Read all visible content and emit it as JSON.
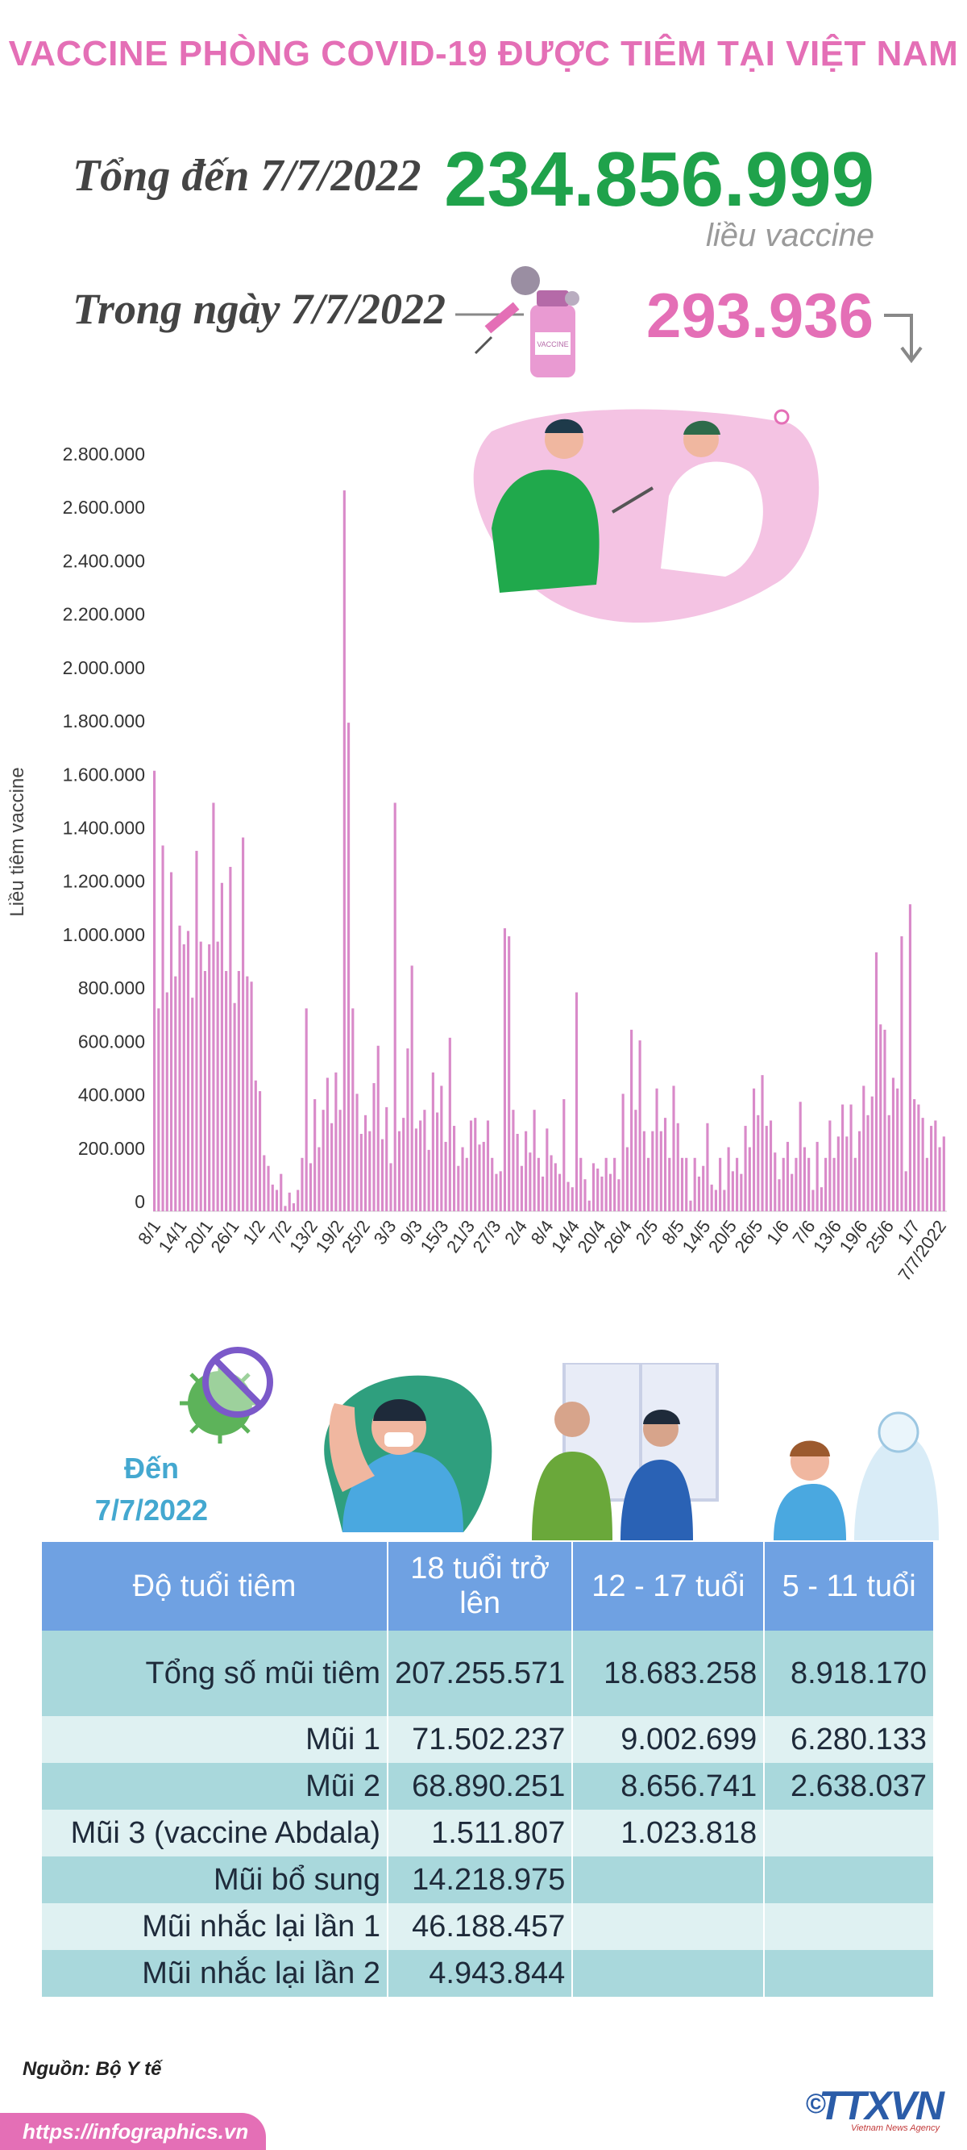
{
  "header": {
    "title": "VACCINE PHÒNG COVID-19 ĐƯỢC TIÊM TẠI VIỆT NAM",
    "total_label": "Tổng đến 7/7/2022",
    "total_value": "234.856.999",
    "total_unit": "liều vaccine",
    "day_label": "Trong ngày 7/7/2022",
    "day_value": "293.936"
  },
  "colors": {
    "pink": "#e46fb6",
    "green": "#1fa24b",
    "bar": "#d98ac9",
    "table_header": "#6fa1e2"
  },
  "icons": [
    "vaccine-vial-icon",
    "syringe-icon",
    "virus-icon",
    "arrow-down-icon",
    "doctor-patient-illustration",
    "no-virus-icon",
    "vaccinated-man-illustration",
    "nurse-vaccinating-illustration",
    "child-vaccination-illustration"
  ],
  "chart_data": {
    "type": "bar",
    "ylabel": "Liều tiêm vaccine",
    "ylim": [
      0,
      2800000
    ],
    "yticks": [
      0,
      200000,
      400000,
      600000,
      800000,
      1000000,
      1200000,
      1400000,
      1600000,
      1800000,
      2000000,
      2200000,
      2400000,
      2600000,
      2800000
    ],
    "ytick_labels": [
      "0",
      "200.000",
      "400.000",
      "600.000",
      "800.000",
      "1.000.000",
      "1.200.000",
      "1.400.000",
      "1.600.000",
      "1.800.000",
      "2.000.000",
      "2.200.000",
      "2.400.000",
      "2.600.000",
      "2.800.000"
    ],
    "xtick_labels": [
      "8/1",
      "14/1",
      "20/1",
      "26/1",
      "1/2",
      "7/2",
      "13/2",
      "19/2",
      "25/2",
      "3/3",
      "9/3",
      "15/3",
      "21/3",
      "27/3",
      "2/4",
      "8/4",
      "14/4",
      "20/4",
      "26/4",
      "2/5",
      "8/5",
      "14/5",
      "20/5",
      "26/5",
      "1/6",
      "7/6",
      "13/6",
      "19/6",
      "25/6",
      "1/7",
      "7/7/2022"
    ],
    "grid": false,
    "values": [
      1650000,
      760000,
      1370000,
      820000,
      1270000,
      880000,
      1070000,
      1000000,
      1050000,
      800000,
      1350000,
      1010000,
      900000,
      1000000,
      1530000,
      1010000,
      1230000,
      900000,
      1290000,
      780000,
      900000,
      1400000,
      880000,
      860000,
      490000,
      450000,
      210000,
      170000,
      100000,
      80000,
      140000,
      20000,
      70000,
      30000,
      80000,
      200000,
      760000,
      180000,
      420000,
      240000,
      380000,
      500000,
      330000,
      520000,
      380000,
      2700000,
      1830000,
      760000,
      440000,
      290000,
      360000,
      300000,
      480000,
      620000,
      270000,
      390000,
      180000,
      1530000,
      300000,
      350000,
      610000,
      920000,
      310000,
      340000,
      380000,
      230000,
      520000,
      370000,
      470000,
      260000,
      650000,
      320000,
      170000,
      240000,
      200000,
      340000,
      350000,
      250000,
      260000,
      340000,
      200000,
      140000,
      150000,
      1060000,
      1030000,
      380000,
      290000,
      170000,
      300000,
      220000,
      380000,
      200000,
      130000,
      310000,
      210000,
      180000,
      140000,
      420000,
      110000,
      90000,
      820000,
      200000,
      120000,
      40000,
      180000,
      160000,
      130000,
      200000,
      140000,
      200000,
      120000,
      440000,
      240000,
      680000,
      380000,
      640000,
      300000,
      200000,
      300000,
      460000,
      300000,
      350000,
      200000,
      470000,
      330000,
      200000,
      200000,
      40000,
      200000,
      130000,
      170000,
      330000,
      100000,
      80000,
      200000,
      80000,
      240000,
      150000,
      200000,
      140000,
      320000,
      240000,
      460000,
      360000,
      510000,
      320000,
      340000,
      220000,
      120000,
      200000,
      260000,
      140000,
      200000,
      410000,
      240000,
      200000,
      80000,
      260000,
      90000,
      200000,
      340000,
      200000,
      280000,
      400000,
      280000,
      400000,
      200000,
      300000,
      470000,
      360000,
      430000,
      970000,
      700000,
      680000,
      360000,
      500000,
      460000,
      1030000,
      150000,
      1150000,
      420000,
      400000,
      350000,
      200000,
      320000,
      340000,
      240000,
      280000
    ]
  },
  "table": {
    "as_of_label": "Đến",
    "as_of_date": "7/7/2022",
    "headers": [
      "Độ tuổi tiêm",
      "18 tuổi trở lên",
      "12 - 17 tuổi",
      "5 - 11 tuổi"
    ],
    "rows": [
      {
        "label": "Tổng số mũi tiêm",
        "a18": "207.255.571",
        "a12": "18.683.258",
        "a5": "8.918.170"
      },
      {
        "label": "Mũi 1",
        "a18": "71.502.237",
        "a12": "9.002.699",
        "a5": "6.280.133"
      },
      {
        "label": "Mũi 2",
        "a18": "68.890.251",
        "a12": "8.656.741",
        "a5": "2.638.037"
      },
      {
        "label": "Mũi 3 (vaccine Abdala)",
        "a18": "1.511.807",
        "a12": "1.023.818",
        "a5": ""
      },
      {
        "label": "Mũi bổ sung",
        "a18": "14.218.975",
        "a12": "",
        "a5": ""
      },
      {
        "label": "Mũi nhắc lại lần 1",
        "a18": "46.188.457",
        "a12": "",
        "a5": ""
      },
      {
        "label": "Mũi nhắc lại lần 2",
        "a18": "4.943.844",
        "a12": "",
        "a5": ""
      }
    ]
  },
  "footer": {
    "source": "Nguồn: Bộ Y tế",
    "url": "https://infographics.vn",
    "copyright": "©",
    "logo": "TTXVN",
    "logo_sub": "Vietnam News Agency"
  }
}
